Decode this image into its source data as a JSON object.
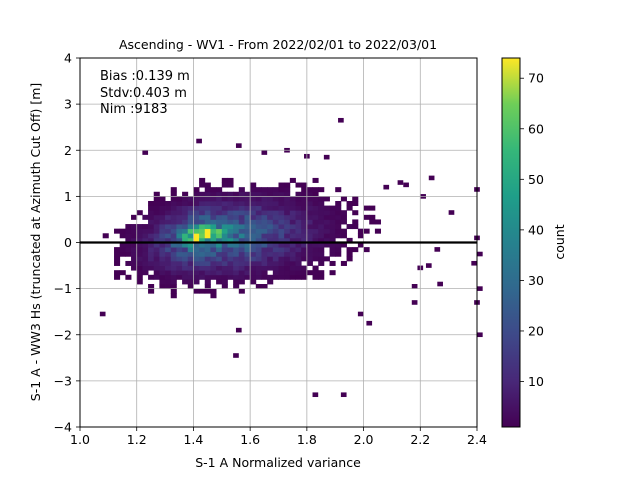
{
  "chart_data": {
    "type": "heatmap",
    "title": "Ascending - WV1 - From 2022/02/01 to 2022/03/01",
    "xlabel": "S-1 A Normalized variance",
    "ylabel": "S-1 A - WW3 Hs (truncated at Azimuth Cut Off) [m]",
    "xlim": [
      1.0,
      2.4
    ],
    "ylim": [
      -4,
      4
    ],
    "x_ticks": [
      "1.0",
      "1.2",
      "1.4",
      "1.6",
      "1.8",
      "2.0",
      "2.2",
      "2.4"
    ],
    "y_ticks": [
      "-4",
      "-3",
      "-2",
      "-1",
      "0",
      "1",
      "2",
      "3",
      "4"
    ],
    "grid": true,
    "colormap": "viridis",
    "colorbar": {
      "label": "count",
      "range": [
        1,
        74
      ],
      "ticks": [
        "10",
        "20",
        "30",
        "40",
        "50",
        "60",
        "70"
      ]
    },
    "stats": {
      "bias": "Bias :0.139 m",
      "stdv": "Stdv:0.403 m",
      "nim": "Nim :9183"
    },
    "reference_line": {
      "y": 0,
      "color": "#000000"
    },
    "density_model": {
      "description_note": "2D histogram of count values",
      "peak_x": 1.43,
      "peak_y": 0.18,
      "peak_count": 74
    },
    "outlier_points": [
      [
        1.07,
        -1.6
      ],
      [
        1.22,
        1.9
      ],
      [
        1.41,
        2.15
      ],
      [
        1.54,
        -2.5
      ],
      [
        1.55,
        -1.95
      ],
      [
        1.55,
        2.05
      ],
      [
        1.64,
        1.9
      ],
      [
        1.72,
        1.95
      ],
      [
        1.79,
        1.82
      ],
      [
        1.82,
        -3.35
      ],
      [
        1.91,
        2.6
      ],
      [
        1.92,
        -3.35
      ],
      [
        1.86,
        1.8
      ],
      [
        1.98,
        -1.6
      ],
      [
        2.01,
        -1.8
      ],
      [
        2.07,
        1.15
      ],
      [
        2.12,
        1.25
      ],
      [
        2.14,
        1.2
      ],
      [
        2.17,
        -1.0
      ],
      [
        2.17,
        -1.35
      ],
      [
        2.19,
        -0.6
      ],
      [
        2.2,
        0.95
      ],
      [
        2.22,
        -0.55
      ],
      [
        2.23,
        1.35
      ],
      [
        2.26,
        -0.95
      ],
      [
        2.25,
        -0.2
      ],
      [
        2.3,
        0.6
      ],
      [
        2.39,
        1.1
      ],
      [
        2.39,
        -1.35
      ],
      [
        2.4,
        -2.05
      ],
      [
        2.4,
        -0.3
      ],
      [
        2.39,
        0.05
      ],
      [
        2.4,
        -1.05
      ],
      [
        2.38,
        -0.5
      ]
    ]
  }
}
